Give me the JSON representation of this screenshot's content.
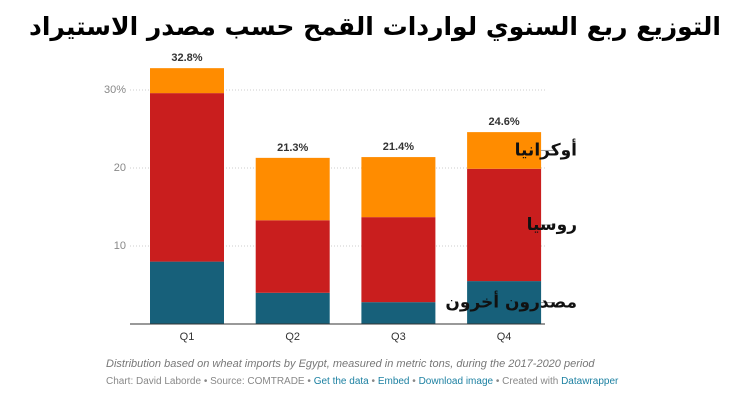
{
  "chart_data": {
    "type": "stacked_bar",
    "title": "التوزيع ربع السنوي لواردات القمح حسب مصدر الاستيراد",
    "categories": [
      "Q1",
      "Q2",
      "Q3",
      "Q4"
    ],
    "series": [
      {
        "name": "مصدرون أخرون",
        "color": "#17607a",
        "values": [
          8.0,
          4.0,
          2.8,
          5.5
        ]
      },
      {
        "name": "روسيا",
        "color": "#c91e1e",
        "values": [
          21.6,
          9.3,
          10.9,
          14.4
        ]
      },
      {
        "name": "أوكرانيا",
        "color": "#ff8c00",
        "values": [
          3.2,
          8.0,
          7.7,
          4.7
        ]
      }
    ],
    "totals": [
      32.8,
      21.3,
      21.4,
      24.6
    ],
    "total_labels": [
      "32.8%",
      "21.3%",
      "21.4%",
      "24.6%"
    ],
    "ylim": [
      0,
      33
    ],
    "yticks": [
      {
        "value": 30,
        "label": "30%"
      },
      20,
      10
    ],
    "grid": true,
    "footer": {
      "note": "Distribution based on wheat imports by Egypt, measured in metric tons, during the 2017-2020 period",
      "credit": "Chart: David Laborde",
      "source": "Source: COMTRADE",
      "separator": "•",
      "links": [
        "Get the data",
        "Embed",
        "Download image"
      ],
      "created": "Created with",
      "brand": "Datawrapper"
    }
  }
}
